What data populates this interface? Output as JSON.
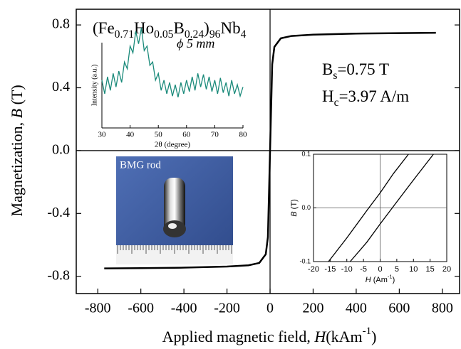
{
  "chart_data": [
    {
      "type": "line",
      "y_label": [
        {
          "text": "Magnetization, "
        },
        {
          "text": "B",
          "italic": true
        },
        {
          "text": " (T)"
        }
      ],
      "x_label": [
        {
          "text": "Applied magnetic field, "
        },
        {
          "text": "H",
          "italic": true
        },
        {
          "text": "(kAm"
        },
        {
          "text": "-1",
          "sup": true
        },
        {
          "text": ")"
        }
      ],
      "composition": [
        {
          "text": "(Fe"
        },
        {
          "text": "0.71",
          "sub": true
        },
        {
          "text": "Ho"
        },
        {
          "text": "0.05",
          "sub": true
        },
        {
          "text": "B"
        },
        {
          "text": "0.24",
          "sub": true
        },
        {
          "text": ")"
        },
        {
          "text": "96",
          "sub": true
        },
        {
          "text": "Nb"
        },
        {
          "text": "4",
          "sub": true
        }
      ],
      "annotations": [
        [
          {
            "text": "B"
          },
          {
            "text": "s",
            "sub": true
          },
          {
            "text": "=0.75 T"
          }
        ],
        [
          {
            "text": "H"
          },
          {
            "text": "c",
            "sub": true
          },
          {
            "text": "=3.97 A/m"
          }
        ]
      ],
      "photo_label": "BMG rod",
      "x": [
        -770,
        -600,
        -400,
        -200,
        -100,
        -50,
        -20,
        -10,
        0,
        10,
        20,
        50,
        100,
        200,
        400,
        600,
        770
      ],
      "values": [
        -0.75,
        -0.748,
        -0.745,
        -0.738,
        -0.73,
        -0.715,
        -0.66,
        -0.55,
        0,
        0.55,
        0.66,
        0.715,
        0.73,
        0.738,
        0.745,
        0.748,
        0.75
      ],
      "color": "#000000",
      "xlim": [
        -900,
        880
      ],
      "ylim": [
        -0.91,
        0.9
      ],
      "xticks": [
        -800,
        -600,
        -400,
        -200,
        0,
        200,
        400,
        600,
        800
      ],
      "yticks": [
        -0.8,
        -0.4,
        {
          "value": 0,
          "label": "0.0"
        },
        0.4,
        0.8
      ]
    },
    {
      "type": "line",
      "y_label": "Intensity (a.u.)",
      "x_label": "2θ (degree)",
      "annotation": "ϕ 5 mm",
      "x": [
        30,
        31,
        32,
        33,
        34,
        35,
        36,
        37,
        38,
        39,
        40,
        41,
        42,
        43,
        44,
        45,
        46,
        47,
        48,
        49,
        50,
        51,
        52,
        53,
        54,
        55,
        56,
        57,
        58,
        59,
        60,
        61,
        62,
        63,
        64,
        65,
        66,
        67,
        68,
        69,
        70,
        71,
        72,
        73,
        74,
        75,
        76,
        77,
        78,
        79,
        80
      ],
      "values": [
        0.42,
        0.3,
        0.45,
        0.33,
        0.48,
        0.36,
        0.5,
        0.4,
        0.58,
        0.52,
        0.72,
        0.66,
        0.85,
        0.74,
        0.88,
        0.68,
        0.72,
        0.55,
        0.58,
        0.42,
        0.48,
        0.33,
        0.42,
        0.3,
        0.4,
        0.28,
        0.38,
        0.27,
        0.4,
        0.3,
        0.42,
        0.32,
        0.45,
        0.33,
        0.48,
        0.36,
        0.47,
        0.34,
        0.45,
        0.32,
        0.42,
        0.3,
        0.44,
        0.31,
        0.4,
        0.28,
        0.42,
        0.3,
        0.38,
        0.28,
        0.36
      ],
      "color": "#1a8a7a",
      "xlim": [
        30,
        80
      ],
      "ylim": [
        0,
        1
      ],
      "xticks": [
        30,
        40,
        50,
        60,
        70,
        80
      ]
    },
    {
      "type": "line",
      "y_label": [
        {
          "text": "B",
          "italic": true
        },
        {
          "text": " (T)"
        }
      ],
      "x_label": [
        {
          "text": "H",
          "italic": true
        },
        {
          "text": " (Am"
        },
        {
          "text": "-1",
          "sup": true
        },
        {
          "text": ")"
        }
      ],
      "series": [
        {
          "color": "#000000",
          "x": [
            -15.5,
            -10,
            -4,
            0,
            4,
            8.5
          ],
          "values": [
            -0.1,
            -0.056,
            -0.005,
            0.028,
            0.064,
            0.1
          ]
        },
        {
          "color": "#000000",
          "x": [
            -9,
            -4,
            0,
            4,
            10,
            16
          ],
          "values": [
            -0.1,
            -0.064,
            -0.03,
            0.003,
            0.052,
            0.1
          ]
        }
      ],
      "xlim": [
        -20,
        20
      ],
      "ylim": [
        -0.1,
        0.1
      ],
      "xticks": [
        -20,
        -15,
        -10,
        -5,
        0,
        5,
        10,
        15,
        20
      ],
      "yticks": [
        -0.1,
        {
          "value": 0,
          "label": "0.0"
        },
        0.1
      ]
    }
  ]
}
